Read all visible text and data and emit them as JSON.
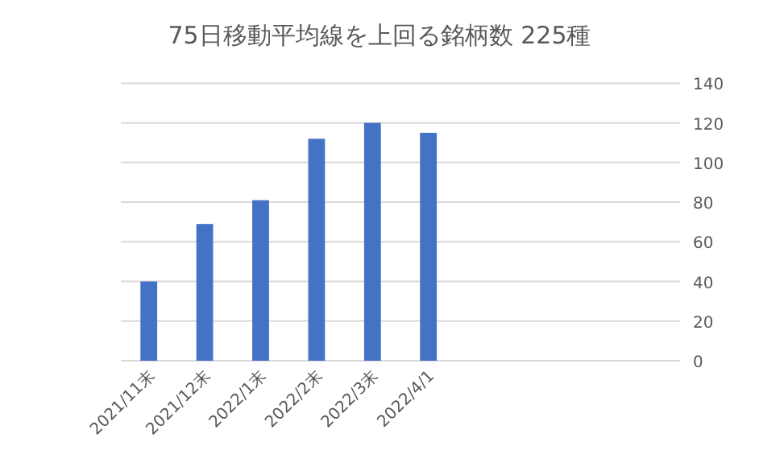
{
  "chart_data": {
    "type": "bar",
    "title": "75日移動平均線を上回る銘柄数 225種",
    "categories": [
      "2021/11末",
      "2021/12末",
      "2022/1末",
      "2022/2末",
      "2022/3末",
      "2022/4/1",
      null,
      null,
      null,
      null
    ],
    "values": [
      40,
      69,
      81,
      112,
      120,
      115,
      null,
      null,
      null,
      null
    ],
    "color": "#4472c4",
    "ylim": [
      0,
      140
    ],
    "yticks": [
      0,
      20,
      40,
      60,
      80,
      100,
      120,
      140
    ],
    "grid": "y"
  }
}
